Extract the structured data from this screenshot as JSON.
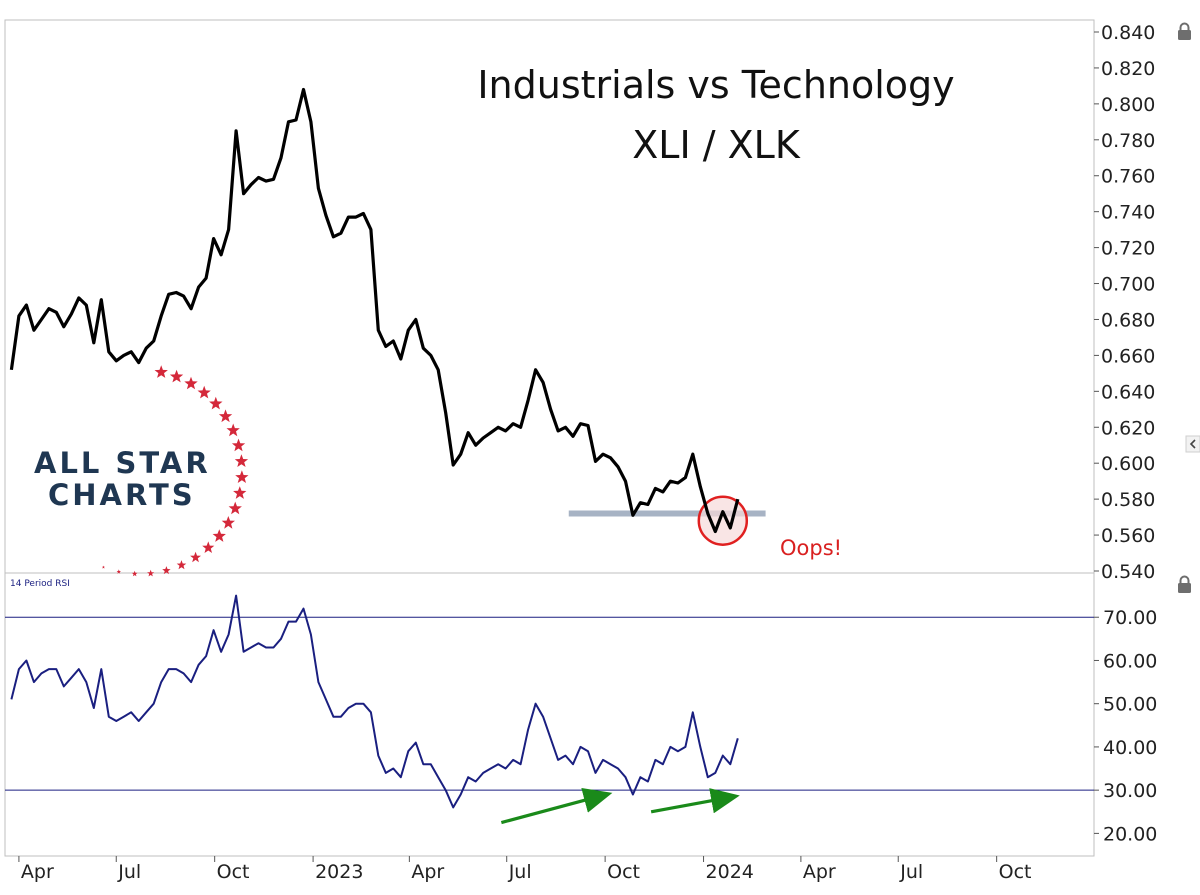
{
  "chart_data": [
    {
      "type": "line",
      "title": "Industrials vs Technology",
      "subtitle": "XLI / XLK",
      "ylim": [
        0.54,
        0.84
      ],
      "yticks": [
        "0.540",
        "0.560",
        "0.580",
        "0.600",
        "0.620",
        "0.640",
        "0.660",
        "0.680",
        "0.700",
        "0.720",
        "0.740",
        "0.760",
        "0.780",
        "0.800",
        "0.820",
        "0.840"
      ],
      "series": [
        {
          "color": "#000000",
          "x": [
            "2022-03-25",
            "2022-04-01",
            "2022-04-08",
            "2022-04-15",
            "2022-04-22",
            "2022-04-29",
            "2022-05-06",
            "2022-05-13",
            "2022-05-20",
            "2022-05-27",
            "2022-06-03",
            "2022-06-10",
            "2022-06-17",
            "2022-06-24",
            "2022-07-01",
            "2022-07-08",
            "2022-07-15",
            "2022-07-22",
            "2022-07-29",
            "2022-08-05",
            "2022-08-12",
            "2022-08-19",
            "2022-08-26",
            "2022-09-02",
            "2022-09-09",
            "2022-09-16",
            "2022-09-23",
            "2022-09-30",
            "2022-10-07",
            "2022-10-14",
            "2022-10-21",
            "2022-10-28",
            "2022-11-04",
            "2022-11-11",
            "2022-11-18",
            "2022-11-25",
            "2022-12-02",
            "2022-12-09",
            "2022-12-16",
            "2022-12-23",
            "2022-12-30",
            "2023-01-06",
            "2023-01-13",
            "2023-01-20",
            "2023-01-27",
            "2023-02-03",
            "2023-02-10",
            "2023-02-17",
            "2023-02-24",
            "2023-03-03",
            "2023-03-10",
            "2023-03-17",
            "2023-03-24",
            "2023-03-31",
            "2023-04-07",
            "2023-04-14",
            "2023-04-21",
            "2023-04-28",
            "2023-05-05",
            "2023-05-12",
            "2023-05-19",
            "2023-05-26",
            "2023-06-02",
            "2023-06-09",
            "2023-06-16",
            "2023-06-23",
            "2023-06-30",
            "2023-07-07",
            "2023-07-14",
            "2023-07-21",
            "2023-07-28",
            "2023-08-04",
            "2023-08-11",
            "2023-08-18",
            "2023-08-25",
            "2023-09-01",
            "2023-09-08",
            "2023-09-15",
            "2023-09-22",
            "2023-09-29",
            "2023-10-06",
            "2023-10-13",
            "2023-10-20",
            "2023-10-27",
            "2023-11-03",
            "2023-11-10",
            "2023-11-17",
            "2023-11-24",
            "2023-12-01",
            "2023-12-08",
            "2023-12-15",
            "2023-12-22",
            "2023-12-29",
            "2024-01-05",
            "2024-01-12",
            "2024-01-19",
            "2024-01-26",
            "2024-02-02"
          ],
          "values": [
            0.652,
            0.682,
            0.688,
            0.674,
            0.68,
            0.686,
            0.684,
            0.676,
            0.683,
            0.692,
            0.688,
            0.667,
            0.691,
            0.662,
            0.657,
            0.66,
            0.662,
            0.656,
            0.664,
            0.668,
            0.682,
            0.694,
            0.695,
            0.693,
            0.686,
            0.698,
            0.703,
            0.725,
            0.716,
            0.73,
            0.785,
            0.75,
            0.755,
            0.759,
            0.757,
            0.758,
            0.77,
            0.79,
            0.791,
            0.808,
            0.79,
            0.753,
            0.738,
            0.726,
            0.728,
            0.737,
            0.737,
            0.739,
            0.73,
            0.674,
            0.665,
            0.668,
            0.658,
            0.674,
            0.68,
            0.664,
            0.66,
            0.652,
            0.628,
            0.599,
            0.605,
            0.617,
            0.61,
            0.614,
            0.617,
            0.62,
            0.618,
            0.622,
            0.62,
            0.635,
            0.652,
            0.645,
            0.63,
            0.618,
            0.62,
            0.615,
            0.622,
            0.621,
            0.601,
            0.605,
            0.603,
            0.598,
            0.59,
            0.571,
            0.578,
            0.577,
            0.586,
            0.584,
            0.59,
            0.589,
            0.592,
            0.605,
            0.587,
            0.572,
            0.562,
            0.573,
            0.564,
            0.58
          ]
        }
      ],
      "annotations": [
        {
          "type": "support-line",
          "y": 0.572,
          "x_start": "2023-08-28",
          "x_end": "2024-02-28",
          "color": "#a7b3c4"
        },
        {
          "type": "circle",
          "x": "2024-01-19",
          "y": 0.568,
          "color": "#e02020"
        },
        {
          "type": "text",
          "text": "Oops!",
          "color": "#d92020"
        }
      ]
    },
    {
      "type": "line",
      "title": "14 Period RSI",
      "ylim": [
        15,
        80
      ],
      "yticks": [
        "20.00",
        "30.00",
        "40.00",
        "50.00",
        "60.00",
        "70.00"
      ],
      "reference_lines": [
        30,
        70
      ],
      "series": [
        {
          "color": "#1a1f80",
          "x": [
            "2022-03-25",
            "2022-04-01",
            "2022-04-08",
            "2022-04-15",
            "2022-04-22",
            "2022-04-29",
            "2022-05-06",
            "2022-05-13",
            "2022-05-20",
            "2022-05-27",
            "2022-06-03",
            "2022-06-10",
            "2022-06-17",
            "2022-06-24",
            "2022-07-01",
            "2022-07-08",
            "2022-07-15",
            "2022-07-22",
            "2022-07-29",
            "2022-08-05",
            "2022-08-12",
            "2022-08-19",
            "2022-08-26",
            "2022-09-02",
            "2022-09-09",
            "2022-09-16",
            "2022-09-23",
            "2022-09-30",
            "2022-10-07",
            "2022-10-14",
            "2022-10-21",
            "2022-10-28",
            "2022-11-04",
            "2022-11-11",
            "2022-11-18",
            "2022-11-25",
            "2022-12-02",
            "2022-12-09",
            "2022-12-16",
            "2022-12-23",
            "2022-12-30",
            "2023-01-06",
            "2023-01-13",
            "2023-01-20",
            "2023-01-27",
            "2023-02-03",
            "2023-02-10",
            "2023-02-17",
            "2023-02-24",
            "2023-03-03",
            "2023-03-10",
            "2023-03-17",
            "2023-03-24",
            "2023-03-31",
            "2023-04-07",
            "2023-04-14",
            "2023-04-21",
            "2023-04-28",
            "2023-05-05",
            "2023-05-12",
            "2023-05-19",
            "2023-05-26",
            "2023-06-02",
            "2023-06-09",
            "2023-06-16",
            "2023-06-23",
            "2023-06-30",
            "2023-07-07",
            "2023-07-14",
            "2023-07-21",
            "2023-07-28",
            "2023-08-04",
            "2023-08-11",
            "2023-08-18",
            "2023-08-25",
            "2023-09-01",
            "2023-09-08",
            "2023-09-15",
            "2023-09-22",
            "2023-09-29",
            "2023-10-06",
            "2023-10-13",
            "2023-10-20",
            "2023-10-27",
            "2023-11-03",
            "2023-11-10",
            "2023-11-17",
            "2023-11-24",
            "2023-12-01",
            "2023-12-08",
            "2023-12-15",
            "2023-12-22",
            "2023-12-29",
            "2024-01-05",
            "2024-01-12",
            "2024-01-19",
            "2024-01-26",
            "2024-02-02"
          ],
          "values": [
            51,
            58,
            60,
            55,
            57,
            58,
            58,
            54,
            56,
            58,
            55,
            49,
            58,
            47,
            46,
            47,
            48,
            46,
            48,
            50,
            55,
            58,
            58,
            57,
            55,
            59,
            61,
            67,
            62,
            66,
            75,
            62,
            63,
            64,
            63,
            63,
            65,
            69,
            69,
            72,
            66,
            55,
            51,
            47,
            47,
            49,
            50,
            50,
            48,
            38,
            34,
            35,
            33,
            39,
            41,
            36,
            36,
            33,
            30,
            26,
            29,
            33,
            32,
            34,
            35,
            36,
            35,
            37,
            36,
            44,
            50,
            47,
            42,
            37,
            38,
            36,
            40,
            39,
            34,
            37,
            36,
            35,
            33,
            29,
            33,
            32,
            37,
            36,
            40,
            39,
            40,
            48,
            40,
            33,
            34,
            38,
            36,
            42
          ]
        }
      ],
      "annotations": [
        {
          "type": "arrow",
          "from": [
            "2023-06-26",
            22.5
          ],
          "to": [
            "2023-10-02",
            29
          ],
          "color": "#1a8a1a"
        },
        {
          "type": "arrow",
          "from": [
            "2023-11-13",
            25
          ],
          "to": [
            "2024-01-29",
            28.5
          ],
          "color": "#1a8a1a"
        }
      ]
    }
  ],
  "x_axis": {
    "range": [
      "2022-03-19",
      "2024-12-31"
    ],
    "ticks": [
      {
        "date": "2022-04-01",
        "label": "Apr"
      },
      {
        "date": "2022-07-01",
        "label": "Jul"
      },
      {
        "date": "2022-10-01",
        "label": "Oct"
      },
      {
        "date": "2023-01-01",
        "label": "2023"
      },
      {
        "date": "2023-04-01",
        "label": "Apr"
      },
      {
        "date": "2023-07-01",
        "label": "Jul"
      },
      {
        "date": "2023-10-01",
        "label": "Oct"
      },
      {
        "date": "2024-01-01",
        "label": "2024"
      },
      {
        "date": "2024-04-01",
        "label": "Apr"
      },
      {
        "date": "2024-07-01",
        "label": "Jul"
      },
      {
        "date": "2024-10-01",
        "label": "Oct"
      }
    ]
  },
  "logo": {
    "line1": "ALL STAR",
    "line2": "CHARTS",
    "star_color": "#d4283a",
    "text_color": "#1f3752"
  },
  "icons": [
    "lock-icon",
    "lock-icon",
    "collapse-arrow-icon"
  ]
}
